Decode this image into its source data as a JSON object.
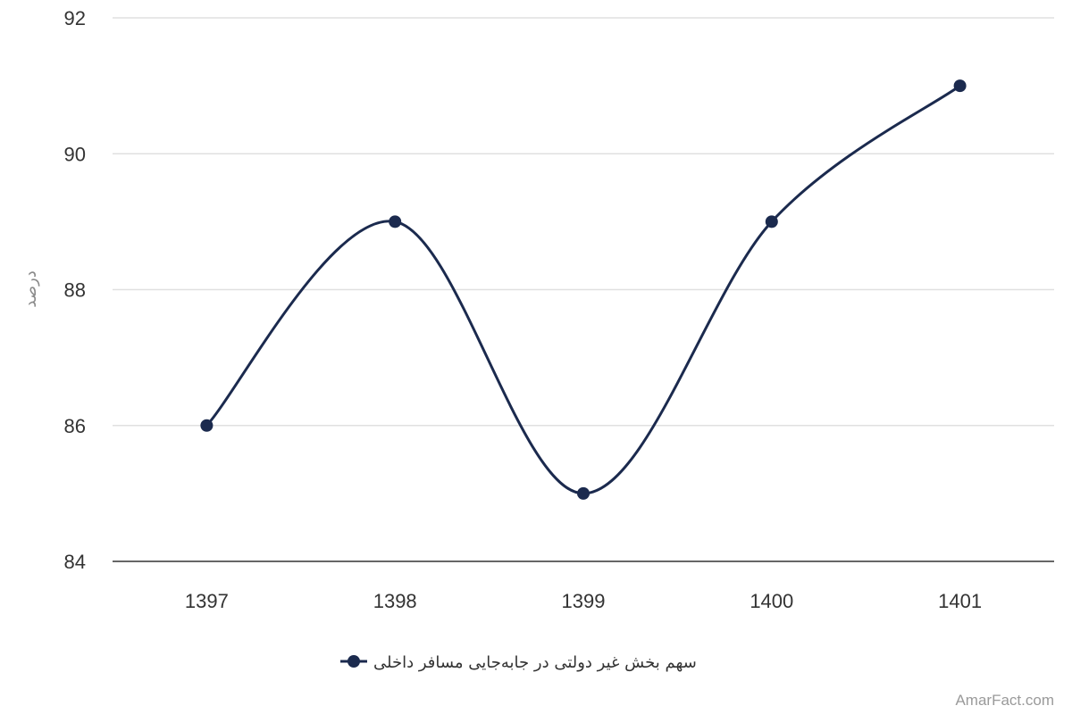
{
  "chart_data": {
    "type": "line",
    "categories": [
      "1397",
      "1398",
      "1399",
      "1400",
      "1401"
    ],
    "series": [
      {
        "name": "سهم بخش غیر دولتی در جابه‌جایی مسافر داخلی",
        "values": [
          86,
          89,
          85,
          89,
          91
        ],
        "color": "#1b2a4e"
      }
    ],
    "title": "",
    "xlabel": "",
    "ylabel": "درصد",
    "ylim": [
      84,
      92
    ],
    "yticks": [
      84,
      86,
      88,
      90,
      92
    ],
    "grid": true,
    "smooth": true,
    "legend_position": "bottom-center"
  },
  "credit": "AmarFact.com",
  "colors": {
    "grid": "#e0e0e0",
    "axis": "#333333",
    "series": "#1b2a4e"
  }
}
